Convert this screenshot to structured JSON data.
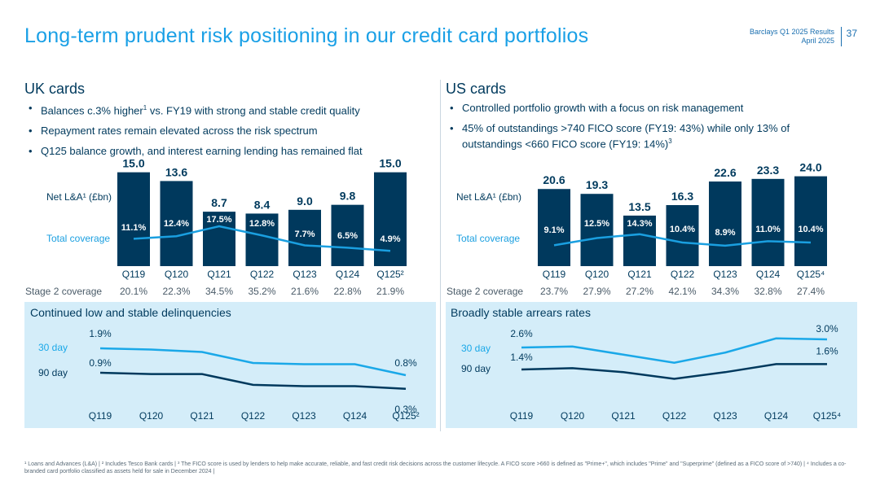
{
  "header": {
    "title": "Long-term prudent risk positioning in our credit card portfolios",
    "results_line": "Barclays Q1 2025 Results",
    "date_line": "April 2025",
    "page_number": "37"
  },
  "uk": {
    "title": "UK cards",
    "bullets": [
      {
        "pre": "Balances c.3% higher",
        "sup": "1",
        "post": " vs. FY19 with strong and stable credit quality"
      },
      {
        "pre": "Repayment rates remain elevated across the risk spectrum",
        "sup": "",
        "post": ""
      },
      {
        "pre": "Q125 balance growth, and interest earning lending has remained flat",
        "sup": "",
        "post": ""
      }
    ],
    "net_label": "Net L&A¹ (£bn)",
    "coverage_label": "Total coverage",
    "stage2_label": "Stage 2 coverage",
    "delinq_title": "Continued low and stable delinquencies"
  },
  "us": {
    "title": "US cards",
    "bullets": [
      {
        "pre": "Controlled portfolio growth with a focus on risk management",
        "sup": "",
        "post": ""
      },
      {
        "pre": "45% of outstandings >740 FICO score (FY19: 43%) while only 13% of",
        "sup": "",
        "post": ""
      },
      {
        "pre": "outstandings <660 FICO score (FY19: 14%)",
        "sup": "3",
        "post": ""
      }
    ],
    "net_label": "Net L&A¹ (£bn)",
    "coverage_label": "Total coverage",
    "stage2_label": "Stage 2 coverage",
    "arrears_title": "Broadly stable arrears rates"
  },
  "chart_data": [
    {
      "id": "uk_balances",
      "type": "bar",
      "title": "UK cards Net L&A (£bn) and Total coverage",
      "categories": [
        "Q119",
        "Q120",
        "Q121",
        "Q122",
        "Q123",
        "Q124",
        "Q125²"
      ],
      "series": [
        {
          "name": "Net L&A¹ (£bn)",
          "values": [
            15.0,
            13.6,
            8.7,
            8.4,
            9.0,
            9.8,
            15.0
          ],
          "labels": [
            "15.0",
            "13.6",
            "8.7",
            "8.4",
            "9.0",
            "9.8",
            "15.0"
          ]
        },
        {
          "name": "Total coverage",
          "type": "line",
          "values": [
            11.1,
            12.4,
            17.5,
            12.8,
            7.7,
            6.5,
            4.9
          ],
          "labels": [
            "11.1%",
            "12.4%",
            "17.5%",
            "12.8%",
            "7.7%",
            "6.5%",
            "4.9%"
          ]
        },
        {
          "name": "Stage 2 coverage",
          "type": "table",
          "values": [
            20.1,
            22.3,
            34.5,
            35.2,
            21.6,
            22.8,
            21.9
          ],
          "labels": [
            "20.1%",
            "22.3%",
            "34.5%",
            "35.2%",
            "21.6%",
            "22.8%",
            "21.9%"
          ]
        }
      ],
      "ylim": [
        0,
        16
      ]
    },
    {
      "id": "us_balances",
      "type": "bar",
      "title": "US cards Net L&A (£bn) and Total coverage",
      "categories": [
        "Q119",
        "Q120",
        "Q121",
        "Q122",
        "Q123",
        "Q124",
        "Q125⁴"
      ],
      "series": [
        {
          "name": "Net L&A¹ (£bn)",
          "values": [
            20.6,
            19.3,
            13.5,
            16.3,
            22.6,
            23.3,
            24.0
          ],
          "labels": [
            "20.6",
            "19.3",
            "13.5",
            "16.3",
            "22.6",
            "23.3",
            "24.0"
          ]
        },
        {
          "name": "Total coverage",
          "type": "line",
          "values": [
            9.1,
            12.5,
            14.3,
            10.4,
            8.9,
            11.0,
            10.4
          ],
          "labels": [
            "9.1%",
            "12.5%",
            "14.3%",
            "10.4%",
            "8.9%",
            "11.0%",
            "10.4%"
          ]
        },
        {
          "name": "Stage 2 coverage",
          "type": "table",
          "values": [
            23.7,
            27.9,
            27.2,
            42.1,
            34.3,
            32.8,
            27.4
          ],
          "labels": [
            "23.7%",
            "27.9%",
            "27.2%",
            "42.1%",
            "34.3%",
            "32.8%",
            "27.4%"
          ]
        }
      ],
      "ylim": [
        0,
        25
      ]
    },
    {
      "id": "uk_delinquencies",
      "type": "line",
      "title": "Continued low and stable delinquencies",
      "categories": [
        "Q119",
        "Q120",
        "Q121",
        "Q122",
        "Q123",
        "Q124",
        "Q125²"
      ],
      "series": [
        {
          "name": "30 day",
          "values": [
            1.9,
            1.85,
            1.75,
            1.3,
            1.25,
            1.25,
            0.8
          ],
          "labels": [
            "1.9%",
            "",
            "",
            "",
            "",
            "",
            "0.8%"
          ]
        },
        {
          "name": "90 day",
          "values": [
            0.9,
            0.85,
            0.85,
            0.45,
            0.4,
            0.4,
            0.3
          ],
          "labels": [
            "0.9%",
            "",
            "",
            "",
            "",
            "",
            "0.3%"
          ]
        }
      ]
    },
    {
      "id": "us_arrears",
      "type": "line",
      "title": "Broadly stable arrears rates",
      "categories": [
        "Q119",
        "Q120",
        "Q121",
        "Q122",
        "Q123",
        "Q124",
        "Q125⁴"
      ],
      "series": [
        {
          "name": "30 day",
          "values": [
            2.6,
            2.65,
            2.25,
            1.85,
            2.35,
            3.05,
            3.0
          ],
          "labels": [
            "2.6%",
            "",
            "",
            "",
            "",
            "",
            "3.0%"
          ]
        },
        {
          "name": "90 day",
          "values": [
            1.4,
            1.45,
            1.3,
            1.05,
            1.3,
            1.6,
            1.6
          ],
          "labels": [
            "1.4%",
            "",
            "",
            "",
            "",
            "",
            "1.6%"
          ]
        }
      ]
    }
  ],
  "footer": {
    "text": "¹ Loans and Advances (L&A) | ² Includes Tesco Bank cards | ³ The FICO score is used by lenders to help make accurate, reliable, and fast credit risk decisions across the customer lifecycle. A FICO score >660 is defined as \"Prime+\", which includes \"Prime\" and \"Superprime\" (defined as a FICO score of >740) | ⁴ Includes a co-branded card portfolio classified as assets held for sale in December 2024 |"
  },
  "colors": {
    "title_blue": "#1aa0e6",
    "navy": "#003a5d",
    "bar": "#00395d",
    "coverage_line": "#1a9fe0",
    "panel_bg": "#d4edf9",
    "line_30": "#1aa8e8",
    "line_90": "#00395d"
  }
}
